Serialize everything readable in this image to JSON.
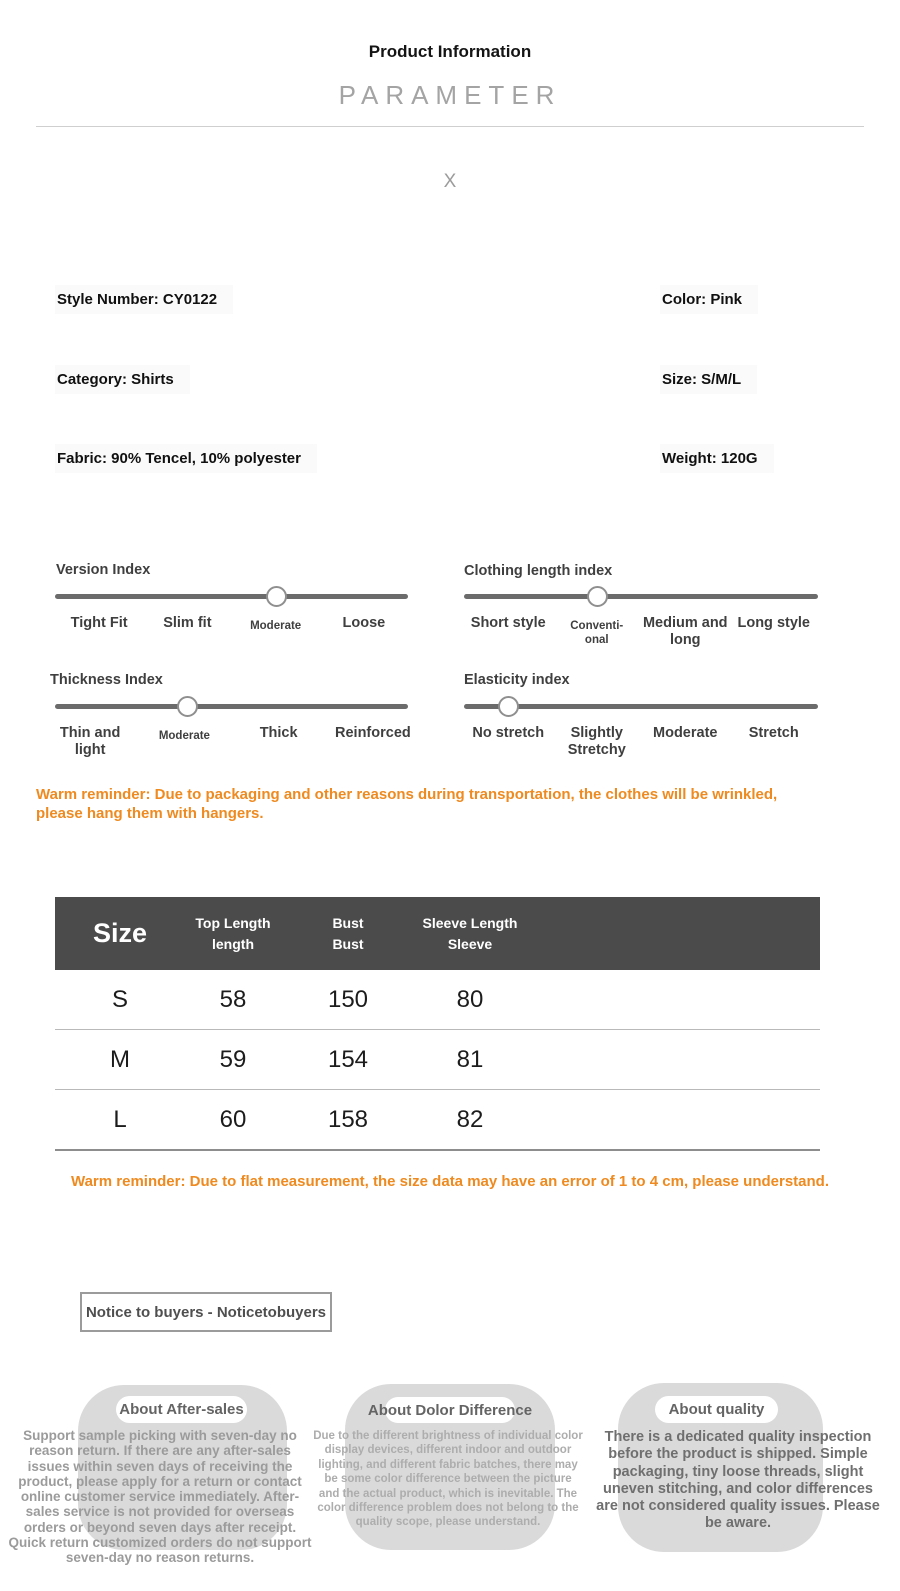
{
  "header": {
    "title": "Product Information",
    "subtitle": "PARAMETER",
    "separator_mark": "X"
  },
  "details": {
    "style_number": "Style Number: CY0122",
    "color": "Color: Pink",
    "category": "Category: Shirts",
    "size": "Size: S/M/L",
    "fabric": "Fabric: 90% Tencel, 10% polyester",
    "weight": "Weight: 120G"
  },
  "sliders": [
    {
      "title": "Version Index",
      "labels": [
        "Tight Fit",
        "Slim fit",
        "Moderate",
        "Loose"
      ],
      "selected": "Moderate",
      "knob_percent": 62.5
    },
    {
      "title": "Clothing length index",
      "labels": [
        "Short style",
        "Conventi-\nonal",
        "Medium and\nlong",
        "Long style"
      ],
      "selected": "Conventional",
      "knob_percent": 37.5
    },
    {
      "title": "Thickness Index",
      "labels": [
        "Thin and light",
        "Moderate",
        "Thick",
        "Reinforced"
      ],
      "selected": "Moderate",
      "knob_percent": 37.5
    },
    {
      "title": "Elasticity index",
      "labels": [
        "No stretch",
        "Slightly\nStretchy",
        "Moderate",
        "Stretch"
      ],
      "selected": "No stretch",
      "knob_percent": 12.5
    }
  ],
  "reminders": {
    "transport": "Warm reminder: Due to packaging and other reasons during transportation, the clothes will be wrinkled, please hang them with hangers.",
    "measurement": "Warm reminder: Due to flat measurement, the size data may have an error of 1 to 4 cm, please understand."
  },
  "size_table": {
    "headers": [
      {
        "line1": "Size",
        "line2": ""
      },
      {
        "line1": "Top Length",
        "line2": "length"
      },
      {
        "line1": "Bust",
        "line2": "Bust"
      },
      {
        "line1": "Sleeve Length",
        "line2": "Sleeve"
      }
    ],
    "rows": [
      [
        "S",
        "58",
        "150",
        "80"
      ],
      [
        "M",
        "59",
        "154",
        "81"
      ],
      [
        "L",
        "60",
        "158",
        "82"
      ]
    ]
  },
  "notice": {
    "label": "Notice to buyers - Noticetobuyers"
  },
  "about_sections": [
    {
      "title": "About After-sales",
      "body": "Support sample picking with seven-day no reason return. If there are any after-sales issues within seven days of receiving the product, please apply for a return or contact online customer service immediately. After-sales service is not provided for overseas orders or beyond seven days after receipt. Quick return customized orders do not support seven-day no reason returns."
    },
    {
      "title": "About Dolor Difference",
      "body": "Due to the different brightness of individual color display devices, different indoor and outdoor lighting, and different fabric batches, there may be some color difference between the picture and the actual product, which is inevitable. The color difference problem does not belong to the quality scope, please understand."
    },
    {
      "title": "About quality",
      "body": "There is a dedicated quality inspection before the product is shipped. Simple packaging, tiny loose threads, slight uneven stitching, and color differences are not considered quality issues. Please be aware."
    }
  ],
  "colors": {
    "accent_orange": "#ee8a1f",
    "table_header_bg": "#4b4b4b"
  }
}
